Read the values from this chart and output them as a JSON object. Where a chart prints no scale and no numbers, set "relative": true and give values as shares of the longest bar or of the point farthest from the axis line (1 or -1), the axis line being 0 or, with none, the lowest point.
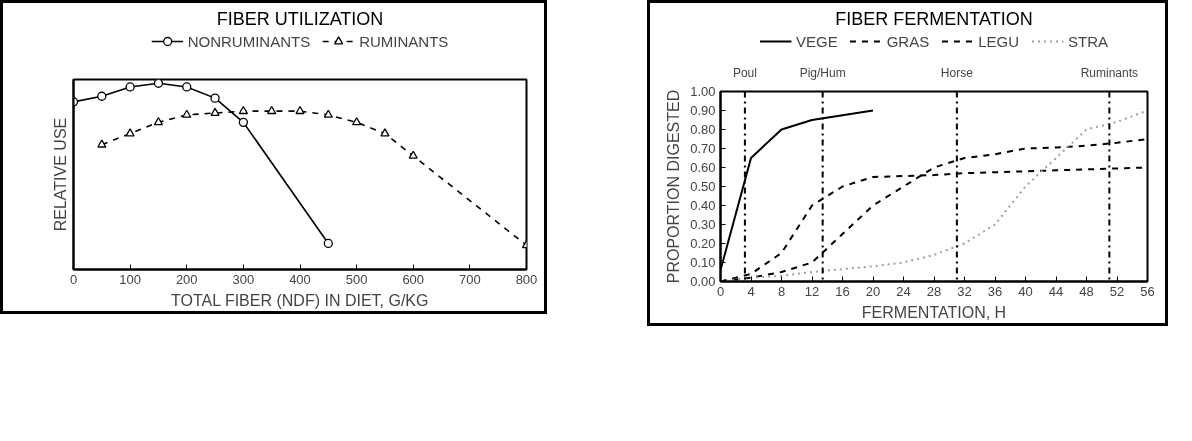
{
  "chart_data": [
    {
      "type": "line",
      "title": "FIBER UTILIZATION",
      "xlabel": "TOTAL FIBER (NDF) IN DIET, G/KG",
      "ylabel": "RELATIVE USE",
      "relative": true,
      "xlim": [
        0,
        800
      ],
      "xticks": [
        0,
        100,
        200,
        300,
        400,
        500,
        600,
        700,
        800
      ],
      "legend": "top",
      "grid": false,
      "series": [
        {
          "name": "NONRUMINANTS",
          "color": "#000000",
          "marker": "circle",
          "line_style": "solid",
          "x": [
            0,
            50,
            100,
            150,
            200,
            250,
            300,
            450
          ],
          "values": [
            0.9,
            0.93,
            0.98,
            1,
            0.98,
            0.92,
            0.79,
            0.14
          ]
        },
        {
          "name": "RUMINANTS",
          "color": "#000000",
          "marker": "triangle",
          "line_style": "dashed",
          "x": [
            50,
            100,
            150,
            200,
            250,
            300,
            350,
            400,
            450,
            500,
            550,
            600,
            800
          ],
          "values": [
            0.67,
            0.73,
            0.79,
            0.83,
            0.84,
            0.85,
            0.85,
            0.85,
            0.83,
            0.79,
            0.73,
            0.61,
            0.13
          ]
        }
      ]
    },
    {
      "type": "line",
      "title": "FIBER FERMENTATION",
      "xlabel": "FERMENTATION, H",
      "ylabel": "PROPORTION DIGESTED",
      "xlim": [
        0,
        56
      ],
      "xticks": [
        0,
        4,
        8,
        12,
        16,
        20,
        24,
        28,
        32,
        36,
        40,
        44,
        48,
        52,
        56
      ],
      "ylim": [
        0,
        1
      ],
      "yticks": [
        {
          "value": 0,
          "label": "0.00"
        },
        {
          "value": 0.1,
          "label": "0.10"
        },
        {
          "value": 0.2,
          "label": "0.20"
        },
        {
          "value": 0.3,
          "label": "0.30"
        },
        {
          "value": 0.4,
          "label": "0.40"
        },
        {
          "value": 0.5,
          "label": "0.50"
        },
        {
          "value": 0.6,
          "label": "0.60"
        },
        {
          "value": 0.7,
          "label": "0.70"
        },
        {
          "value": 0.8,
          "label": "0.80"
        },
        {
          "value": 0.9,
          "label": "0.90"
        },
        {
          "value": 1,
          "label": "1.00"
        }
      ],
      "legend": "top",
      "grid": false,
      "series": [
        {
          "name": "VEGE",
          "color": "#000000",
          "line_style": "solid",
          "x": [
            0,
            4,
            8,
            12,
            16,
            20
          ],
          "values": [
            0.06,
            0.65,
            0.8,
            0.85,
            0.875,
            0.9
          ]
        },
        {
          "name": "GRAS",
          "color": "#000000",
          "line_style": "dashed",
          "x": [
            0,
            4,
            8,
            12,
            16,
            20,
            24,
            28,
            32,
            36,
            40,
            44,
            48,
            52,
            56
          ],
          "values": [
            0,
            0.02,
            0.05,
            0.1,
            0.25,
            0.4,
            0.5,
            0.6,
            0.65,
            0.67,
            0.7,
            0.705,
            0.715,
            0.73,
            0.75
          ]
        },
        {
          "name": "LEGU",
          "color": "#000000",
          "line_style": "dashed",
          "x": [
            0,
            4,
            8,
            12,
            16,
            20,
            24,
            28,
            32,
            36,
            40,
            44,
            48,
            52,
            56
          ],
          "values": [
            0,
            0.04,
            0.15,
            0.4,
            0.5,
            0.55,
            0.555,
            0.56,
            0.57,
            0.575,
            0.58,
            0.585,
            0.59,
            0.595,
            0.6
          ]
        },
        {
          "name": "STRA",
          "color": "#a0a0a0",
          "line_style": "dotted",
          "x": [
            0,
            4,
            8,
            12,
            16,
            20,
            24,
            28,
            32,
            36,
            40,
            44,
            48,
            52,
            56
          ],
          "values": [
            0,
            0.02,
            0.03,
            0.05,
            0.065,
            0.08,
            0.1,
            0.14,
            0.2,
            0.3,
            0.5,
            0.65,
            0.8,
            0.84,
            0.9
          ]
        }
      ],
      "ref_lines": [
        {
          "axis": "x",
          "value": 3.2,
          "label": "Poul",
          "line_style": "dashdot"
        },
        {
          "axis": "x",
          "value": 13.4,
          "label": "Pig/Hum",
          "line_style": "dashdot"
        },
        {
          "axis": "x",
          "value": 31,
          "label": "Horse",
          "line_style": "dashdot"
        },
        {
          "axis": "x",
          "value": 51,
          "label": "Ruminants",
          "line_style": "dashdot"
        }
      ]
    }
  ]
}
